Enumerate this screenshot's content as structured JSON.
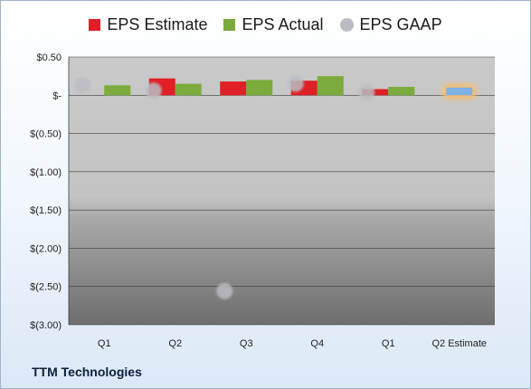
{
  "company": "TTM Technologies",
  "colors": {
    "estimate": "#e01f26",
    "actual": "#7aab3c",
    "gaap": "#b9bdc2",
    "future": "#7fb0e6",
    "future_glow": "#f7be6b"
  },
  "legend": [
    {
      "key": "estimate",
      "label": "EPS Estimate",
      "shape": "square"
    },
    {
      "key": "actual",
      "label": "EPS Actual",
      "shape": "square"
    },
    {
      "key": "gaap",
      "label": "EPS GAAP",
      "shape": "circle"
    }
  ],
  "chart_data": {
    "type": "bar",
    "categories": [
      "Q1",
      "Q2",
      "Q3",
      "Q4",
      "Q1",
      "Q2 Estimate"
    ],
    "series": [
      {
        "name": "EPS Estimate",
        "values": [
          null,
          0.22,
          0.18,
          0.19,
          0.08,
          0.1
        ]
      },
      {
        "name": "EPS Actual",
        "values": [
          0.13,
          0.15,
          0.2,
          0.25,
          0.11,
          null
        ]
      },
      {
        "name": "EPS GAAP",
        "type": "scatter",
        "values": [
          0.13,
          0.06,
          -2.56,
          0.15,
          0.04,
          null
        ]
      }
    ],
    "ylim": [
      -3.0,
      0.5
    ],
    "yticks": [
      0.5,
      0,
      -0.5,
      -1.0,
      -1.5,
      -2.0,
      -2.5,
      -3.0
    ],
    "ytick_labels": [
      "$0.50",
      "$-",
      "$(0.50)",
      "$(1.00)",
      "$(1.50)",
      "$(2.00)",
      "$(2.50)",
      "$(3.00)"
    ],
    "grid": true,
    "legend_position": "top"
  }
}
